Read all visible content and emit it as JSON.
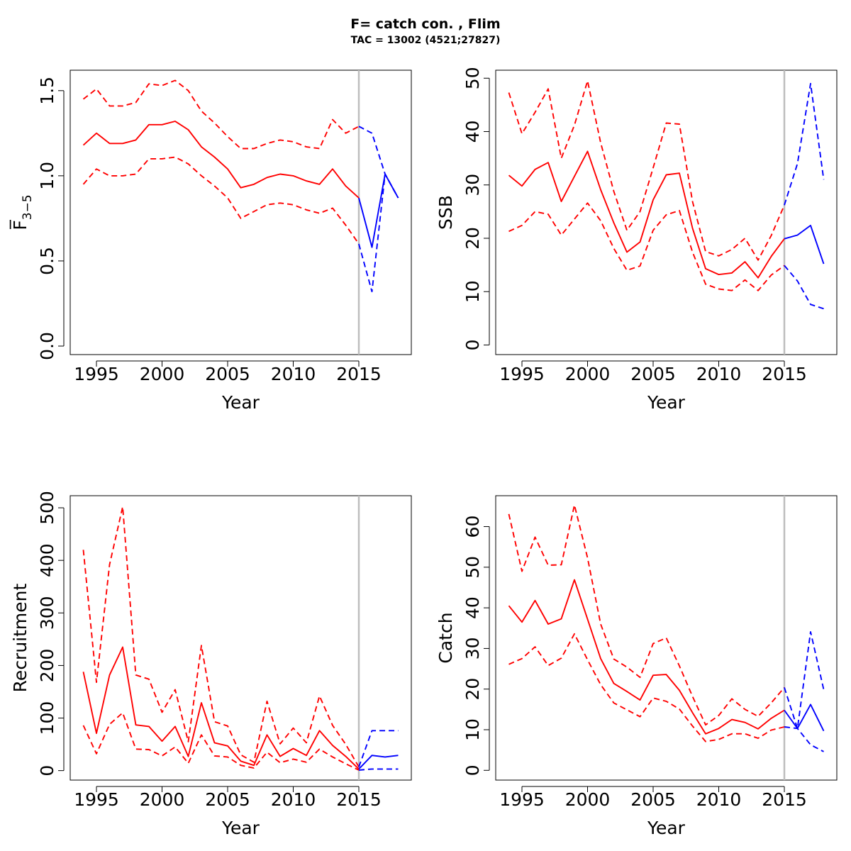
{
  "title": "F= catch con. , Flim",
  "subtitle": "TAC = 13002 (4521;27827)",
  "colors": {
    "historical": "#ff0000",
    "projection": "#0000ff",
    "divider": "#bebebe",
    "frame": "#000000"
  },
  "chart_data": [
    {
      "type": "line",
      "panel": "top-left",
      "xlabel": "Year",
      "ylabel": "F̅",
      "ylabel_sub": "3−5",
      "xlim": [
        1993,
        2019
      ],
      "ylim": [
        -0.05,
        1.62
      ],
      "xticks": [
        1995,
        2000,
        2005,
        2010,
        2015
      ],
      "yticks": [
        0.0,
        0.5,
        1.0,
        1.5
      ],
      "ytick_labels": [
        "0.0",
        "0.5",
        "1.0",
        "1.5"
      ],
      "divider_year": 2015,
      "historical": {
        "years": [
          1994,
          1995,
          1996,
          1997,
          1998,
          1999,
          2000,
          2001,
          2002,
          2003,
          2004,
          2005,
          2006,
          2007,
          2008,
          2009,
          2010,
          2011,
          2012,
          2013,
          2014,
          2015
        ],
        "median": [
          1.18,
          1.25,
          1.19,
          1.19,
          1.21,
          1.3,
          1.3,
          1.32,
          1.27,
          1.17,
          1.11,
          1.04,
          0.93,
          0.95,
          0.99,
          1.01,
          1.0,
          0.97,
          0.95,
          1.04,
          0.94,
          0.87
        ],
        "lower": [
          0.95,
          1.04,
          1.0,
          1.0,
          1.01,
          1.1,
          1.1,
          1.11,
          1.07,
          1.0,
          0.94,
          0.87,
          0.75,
          0.79,
          0.83,
          0.84,
          0.83,
          0.8,
          0.78,
          0.81,
          0.71,
          0.6
        ],
        "upper": [
          1.45,
          1.51,
          1.41,
          1.41,
          1.43,
          1.54,
          1.53,
          1.56,
          1.5,
          1.38,
          1.31,
          1.23,
          1.16,
          1.16,
          1.19,
          1.21,
          1.2,
          1.17,
          1.16,
          1.33,
          1.25,
          1.29
        ]
      },
      "projection": {
        "years": [
          2015,
          2016,
          2017,
          2018
        ],
        "median": [
          0.87,
          0.58,
          1.01,
          0.87
        ],
        "lower": [
          0.6,
          0.32,
          1.01,
          0.87
        ],
        "upper": [
          1.29,
          1.25,
          1.01,
          0.87
        ]
      }
    },
    {
      "type": "line",
      "panel": "top-right",
      "xlabel": "Year",
      "ylabel": "SSB",
      "xlim": [
        1993,
        2019
      ],
      "ylim": [
        -1.8,
        51.5
      ],
      "xticks": [
        1995,
        2000,
        2005,
        2010,
        2015
      ],
      "yticks": [
        0,
        10,
        20,
        30,
        40,
        50
      ],
      "ytick_labels": [
        "0",
        "10",
        "20",
        "30",
        "40",
        "50"
      ],
      "divider_year": 2015,
      "historical": {
        "years": [
          1994,
          1995,
          1996,
          1997,
          1998,
          1999,
          2000,
          2001,
          2002,
          2003,
          2004,
          2005,
          2006,
          2007,
          2008,
          2009,
          2010,
          2011,
          2012,
          2013,
          2014,
          2015
        ],
        "median": [
          31.8,
          29.8,
          32.9,
          34.2,
          26.9,
          31.6,
          36.3,
          29.1,
          22.9,
          17.4,
          19.3,
          27.2,
          31.9,
          32.2,
          21.9,
          14.3,
          13.2,
          13.5,
          15.6,
          12.6,
          16.6,
          19.9
        ],
        "lower": [
          21.3,
          22.4,
          25.0,
          24.5,
          20.6,
          23.6,
          26.6,
          23.3,
          18.1,
          14.0,
          14.8,
          21.5,
          24.4,
          25.2,
          17.4,
          11.4,
          10.5,
          10.2,
          12.2,
          10.2,
          13.1,
          14.9
        ],
        "upper": [
          47.3,
          39.6,
          43.6,
          48.0,
          35.0,
          41.2,
          49.5,
          37.9,
          28.8,
          21.5,
          25.0,
          33.2,
          41.6,
          41.4,
          26.9,
          17.5,
          16.7,
          17.9,
          20.0,
          15.9,
          20.5,
          26.2
        ]
      },
      "projection": {
        "years": [
          2015,
          2016,
          2017,
          2018
        ],
        "median": [
          19.9,
          20.6,
          22.4,
          15.2
        ],
        "lower": [
          14.9,
          12.0,
          7.6,
          6.8
        ],
        "upper": [
          26.2,
          34.0,
          49.0,
          31.0
        ]
      }
    },
    {
      "type": "line",
      "panel": "bottom-left",
      "xlabel": "Year",
      "ylabel": "Recruitment",
      "xlim": [
        1993,
        2019
      ],
      "ylim": [
        -18,
        523
      ],
      "xticks": [
        1995,
        2000,
        2005,
        2010,
        2015
      ],
      "yticks": [
        0,
        100,
        200,
        300,
        400,
        500
      ],
      "ytick_labels": [
        "0",
        "100",
        "200",
        "300",
        "400",
        "500"
      ],
      "divider_year": 2015,
      "historical": {
        "years": [
          1994,
          1995,
          1996,
          1997,
          1998,
          1999,
          2000,
          2001,
          2002,
          2003,
          2004,
          2005,
          2006,
          2007,
          2008,
          2009,
          2010,
          2011,
          2012,
          2013,
          2014,
          2015
        ],
        "median": [
          188,
          71,
          182,
          235,
          87,
          84,
          56,
          84,
          27,
          129,
          53,
          47,
          18,
          10,
          68,
          27,
          42,
          29,
          76,
          48,
          27,
          3
        ],
        "lower": [
          86,
          32,
          88,
          110,
          41,
          40,
          28,
          45,
          14,
          68,
          28,
          26,
          10,
          5,
          35,
          15,
          22,
          16,
          41,
          26,
          13,
          1
        ],
        "upper": [
          420,
          168,
          392,
          502,
          182,
          174,
          111,
          154,
          55,
          238,
          93,
          85,
          30,
          16,
          132,
          51,
          81,
          53,
          142,
          86,
          50,
          7
        ]
      },
      "projection": {
        "years": [
          2015,
          2016,
          2017,
          2018
        ],
        "median": [
          3,
          29,
          26,
          29
        ],
        "lower": [
          1,
          3,
          3,
          3
        ],
        "upper": [
          7,
          76,
          76,
          76
        ]
      }
    },
    {
      "type": "line",
      "panel": "bottom-right",
      "xlabel": "Year",
      "ylabel": "Catch",
      "xlim": [
        1993,
        2019
      ],
      "ylim": [
        -2.4,
        67.6
      ],
      "xticks": [
        1995,
        2000,
        2005,
        2010,
        2015
      ],
      "yticks": [
        0,
        10,
        20,
        30,
        40,
        50,
        60
      ],
      "ytick_labels": [
        "0",
        "10",
        "20",
        "30",
        "40",
        "50",
        "60"
      ],
      "divider_year": 2015,
      "historical": {
        "years": [
          1994,
          1995,
          1996,
          1997,
          1998,
          1999,
          2000,
          2001,
          2002,
          2003,
          2004,
          2005,
          2006,
          2007,
          2008,
          2009,
          2010,
          2011,
          2012,
          2013,
          2014,
          2015
        ],
        "median": [
          40.5,
          36.5,
          41.8,
          36.0,
          37.3,
          46.9,
          37.2,
          27.5,
          21.4,
          19.4,
          17.3,
          23.4,
          23.6,
          19.7,
          14.2,
          9.0,
          10.3,
          12.5,
          11.8,
          10.2,
          12.8,
          14.8
        ],
        "lower": [
          26.1,
          27.5,
          30.4,
          25.8,
          27.6,
          33.6,
          27.2,
          21.1,
          16.6,
          14.9,
          13.2,
          17.8,
          17.0,
          15.1,
          10.9,
          7.1,
          7.6,
          9.0,
          9.0,
          7.9,
          9.9,
          10.7
        ],
        "upper": [
          63.1,
          49.0,
          57.4,
          50.5,
          50.6,
          65.3,
          52.3,
          36.0,
          27.4,
          25.4,
          22.9,
          31.2,
          32.6,
          25.7,
          18.2,
          11.2,
          13.5,
          17.6,
          15.0,
          13.3,
          16.6,
          20.4
        ]
      },
      "projection": {
        "years": [
          2015,
          2016,
          2017,
          2018
        ],
        "median": [
          14.8,
          10.3,
          16.2,
          9.7
        ],
        "lower": [
          10.7,
          10.3,
          6.3,
          4.6
        ],
        "upper": [
          20.4,
          10.3,
          34.1,
          19.9
        ]
      }
    }
  ]
}
